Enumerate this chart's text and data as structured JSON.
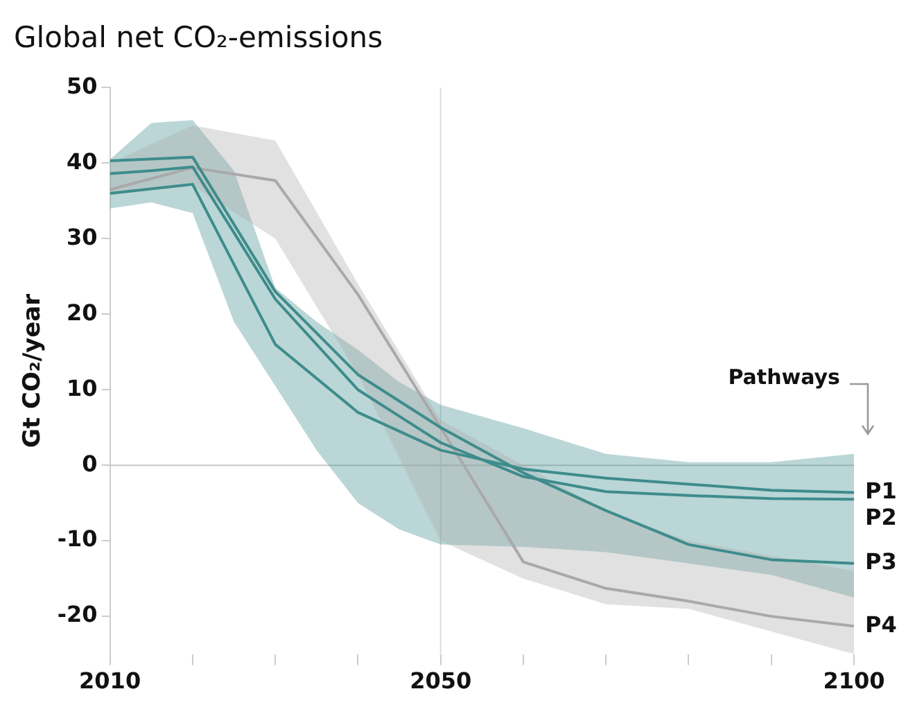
{
  "chart_data": {
    "type": "line",
    "title": "Global net CO₂-emissions",
    "ylabel": "Gt CO₂/year",
    "xlim": [
      2010,
      2100
    ],
    "xticks": [
      2010,
      {
        "value": 2020,
        "label": null
      },
      {
        "value": 2030,
        "label": null
      },
      {
        "value": 2040,
        "label": null
      },
      2050,
      {
        "value": 2060,
        "label": null
      },
      {
        "value": 2070,
        "label": null
      },
      {
        "value": 2080,
        "label": null
      },
      {
        "value": 2090,
        "label": null
      },
      2100
    ],
    "ylim": [
      -25,
      50
    ],
    "yticks": [
      -20,
      -10,
      0,
      10,
      20,
      30,
      40,
      50
    ],
    "grid": false,
    "legend": false,
    "marker": "none",
    "line_style": "solid",
    "ref_lines": [
      {
        "axis": "y",
        "value": 0,
        "color": "#c8c8c8"
      },
      {
        "axis": "x",
        "value": 2050,
        "color": "#dcdcdc"
      }
    ],
    "annotations": [
      "Pathways"
    ],
    "x": [
      2010,
      2020,
      2030,
      2040,
      2050,
      2060,
      2070,
      2080,
      2090,
      2100
    ],
    "series": [
      {
        "name": "P1",
        "color": "#3e8c8c",
        "values": [
          36,
          37.2,
          16,
          7,
          2,
          -0.5,
          -1.7,
          -2.5,
          -3.3,
          -3.6
        ]
      },
      {
        "name": "P2",
        "color": "#3e8c8c",
        "x": [
          2010,
          2015,
          2020,
          2025,
          2030,
          2035,
          2040,
          2045,
          2050,
          2060,
          2070,
          2080,
          2090,
          2100
        ],
        "values": [
          38.6,
          39,
          39.5,
          30.8,
          22,
          16,
          10,
          6.5,
          3,
          -1.5,
          -3.5,
          -4,
          -4.4,
          -4.5
        ],
        "lower": [
          34,
          34.8,
          33.4,
          19,
          10.5,
          2,
          -5,
          -8.5,
          -10.5,
          -10.8,
          -11.5,
          -13,
          -14.5,
          -17.5
        ],
        "upper": [
          40.5,
          45.3,
          45.7,
          39,
          23.5,
          19,
          15.3,
          11,
          8,
          4.9,
          1.5,
          0.4,
          0.4,
          1.5
        ]
      },
      {
        "name": "P3",
        "color": "#3e8c8c",
        "values": [
          40.3,
          40.8,
          23,
          12,
          5,
          -1,
          -6,
          -10.5,
          -12.5,
          -13
        ]
      },
      {
        "name": "P4",
        "color": "#a9a9a9",
        "values": [
          36.5,
          39.4,
          37.7,
          22.6,
          5,
          -12.8,
          -16.3,
          -18,
          -20,
          -21.3
        ],
        "lower": [
          36,
          37,
          30,
          12,
          -10,
          -15,
          -18.4,
          -19,
          -22,
          -25
        ],
        "upper": [
          40,
          45,
          43,
          24,
          6,
          0,
          -6,
          -10,
          -12,
          -14
        ]
      }
    ]
  }
}
